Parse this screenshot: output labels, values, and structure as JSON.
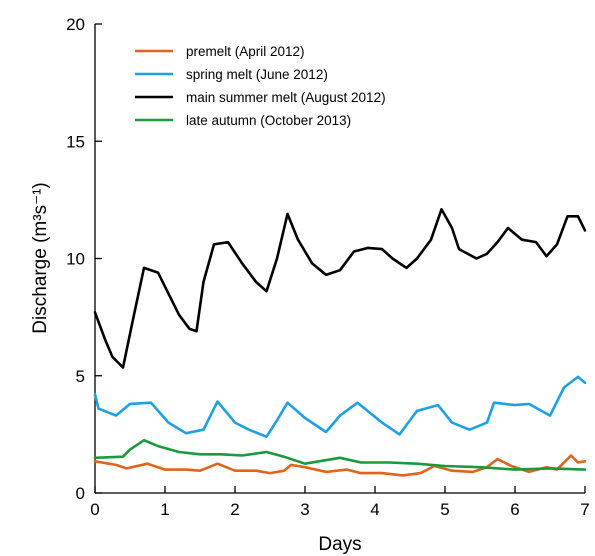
{
  "chart_data": {
    "type": "line",
    "xlabel": "Days",
    "ylabel": "Discharge (m³s⁻¹)",
    "xlim": [
      0,
      7
    ],
    "ylim": [
      0,
      20
    ],
    "x_ticks": [
      "0",
      "1",
      "2",
      "3",
      "4",
      "5",
      "6",
      "7"
    ],
    "y_ticks": [
      "0",
      "5",
      "10",
      "15",
      "20"
    ],
    "grid": false,
    "legend_position": "top-left",
    "series": [
      {
        "name": "premelt (April 2012)",
        "color": "#e0641c",
        "points": [
          [
            0,
            1.35
          ],
          [
            0.3,
            1.2
          ],
          [
            0.45,
            1.05
          ],
          [
            0.75,
            1.25
          ],
          [
            1.0,
            1.0
          ],
          [
            1.3,
            1.0
          ],
          [
            1.5,
            0.95
          ],
          [
            1.75,
            1.25
          ],
          [
            2.0,
            0.95
          ],
          [
            2.3,
            0.95
          ],
          [
            2.5,
            0.85
          ],
          [
            2.7,
            0.95
          ],
          [
            2.8,
            1.2
          ],
          [
            3.0,
            1.1
          ],
          [
            3.3,
            0.9
          ],
          [
            3.6,
            1.0
          ],
          [
            3.8,
            0.85
          ],
          [
            4.1,
            0.85
          ],
          [
            4.4,
            0.75
          ],
          [
            4.65,
            0.85
          ],
          [
            4.85,
            1.15
          ],
          [
            5.1,
            0.95
          ],
          [
            5.4,
            0.9
          ],
          [
            5.6,
            1.1
          ],
          [
            5.75,
            1.45
          ],
          [
            5.95,
            1.15
          ],
          [
            6.2,
            0.9
          ],
          [
            6.45,
            1.1
          ],
          [
            6.6,
            1.0
          ],
          [
            6.8,
            1.6
          ],
          [
            6.9,
            1.3
          ],
          [
            7.0,
            1.35
          ]
        ]
      },
      {
        "name": "spring melt (June 2012)",
        "color": "#1ea0e6",
        "points": [
          [
            0,
            4.2
          ],
          [
            0.05,
            3.6
          ],
          [
            0.3,
            3.3
          ],
          [
            0.5,
            3.8
          ],
          [
            0.8,
            3.85
          ],
          [
            1.05,
            3.0
          ],
          [
            1.3,
            2.55
          ],
          [
            1.55,
            2.7
          ],
          [
            1.75,
            3.9
          ],
          [
            2.0,
            3.0
          ],
          [
            2.2,
            2.7
          ],
          [
            2.45,
            2.4
          ],
          [
            2.6,
            3.1
          ],
          [
            2.75,
            3.85
          ],
          [
            3.0,
            3.2
          ],
          [
            3.3,
            2.6
          ],
          [
            3.5,
            3.3
          ],
          [
            3.75,
            3.85
          ],
          [
            4.1,
            3.0
          ],
          [
            4.35,
            2.5
          ],
          [
            4.6,
            3.5
          ],
          [
            4.9,
            3.75
          ],
          [
            5.1,
            3.0
          ],
          [
            5.35,
            2.7
          ],
          [
            5.6,
            3.0
          ],
          [
            5.7,
            3.85
          ],
          [
            6.0,
            3.75
          ],
          [
            6.2,
            3.8
          ],
          [
            6.5,
            3.3
          ],
          [
            6.7,
            4.5
          ],
          [
            6.9,
            4.95
          ],
          [
            7.0,
            4.7
          ]
        ]
      },
      {
        "name": "main summer melt (August 2012)",
        "color": "#000000",
        "points": [
          [
            0,
            7.7
          ],
          [
            0.15,
            6.5
          ],
          [
            0.25,
            5.8
          ],
          [
            0.4,
            5.35
          ],
          [
            0.55,
            7.5
          ],
          [
            0.7,
            9.6
          ],
          [
            0.9,
            9.4
          ],
          [
            1.05,
            8.5
          ],
          [
            1.2,
            7.6
          ],
          [
            1.35,
            7.0
          ],
          [
            1.45,
            6.9
          ],
          [
            1.55,
            9.0
          ],
          [
            1.7,
            10.6
          ],
          [
            1.9,
            10.7
          ],
          [
            2.1,
            9.8
          ],
          [
            2.3,
            9.0
          ],
          [
            2.45,
            8.6
          ],
          [
            2.6,
            10.0
          ],
          [
            2.75,
            11.9
          ],
          [
            2.9,
            10.8
          ],
          [
            3.1,
            9.8
          ],
          [
            3.3,
            9.3
          ],
          [
            3.5,
            9.5
          ],
          [
            3.7,
            10.3
          ],
          [
            3.9,
            10.45
          ],
          [
            4.1,
            10.4
          ],
          [
            4.25,
            10.0
          ],
          [
            4.45,
            9.6
          ],
          [
            4.6,
            10.0
          ],
          [
            4.8,
            10.8
          ],
          [
            4.95,
            12.1
          ],
          [
            5.1,
            11.3
          ],
          [
            5.2,
            10.4
          ],
          [
            5.45,
            10.0
          ],
          [
            5.6,
            10.2
          ],
          [
            5.75,
            10.7
          ],
          [
            5.9,
            11.3
          ],
          [
            6.1,
            10.8
          ],
          [
            6.3,
            10.7
          ],
          [
            6.45,
            10.1
          ],
          [
            6.6,
            10.6
          ],
          [
            6.75,
            11.8
          ],
          [
            6.9,
            11.8
          ],
          [
            7.0,
            11.2
          ]
        ]
      },
      {
        "name": "late autumn (October 2013)",
        "color": "#1a9a3c",
        "points": [
          [
            0,
            1.5
          ],
          [
            0.4,
            1.55
          ],
          [
            0.5,
            1.85
          ],
          [
            0.7,
            2.25
          ],
          [
            0.9,
            2.0
          ],
          [
            1.2,
            1.75
          ],
          [
            1.5,
            1.65
          ],
          [
            1.8,
            1.65
          ],
          [
            2.1,
            1.6
          ],
          [
            2.45,
            1.75
          ],
          [
            2.7,
            1.55
          ],
          [
            3.0,
            1.25
          ],
          [
            3.2,
            1.35
          ],
          [
            3.5,
            1.5
          ],
          [
            3.8,
            1.3
          ],
          [
            4.2,
            1.3
          ],
          [
            4.6,
            1.25
          ],
          [
            5.0,
            1.15
          ],
          [
            5.5,
            1.1
          ],
          [
            6.0,
            1.0
          ],
          [
            6.5,
            1.05
          ],
          [
            7.0,
            1.0
          ]
        ]
      }
    ]
  }
}
